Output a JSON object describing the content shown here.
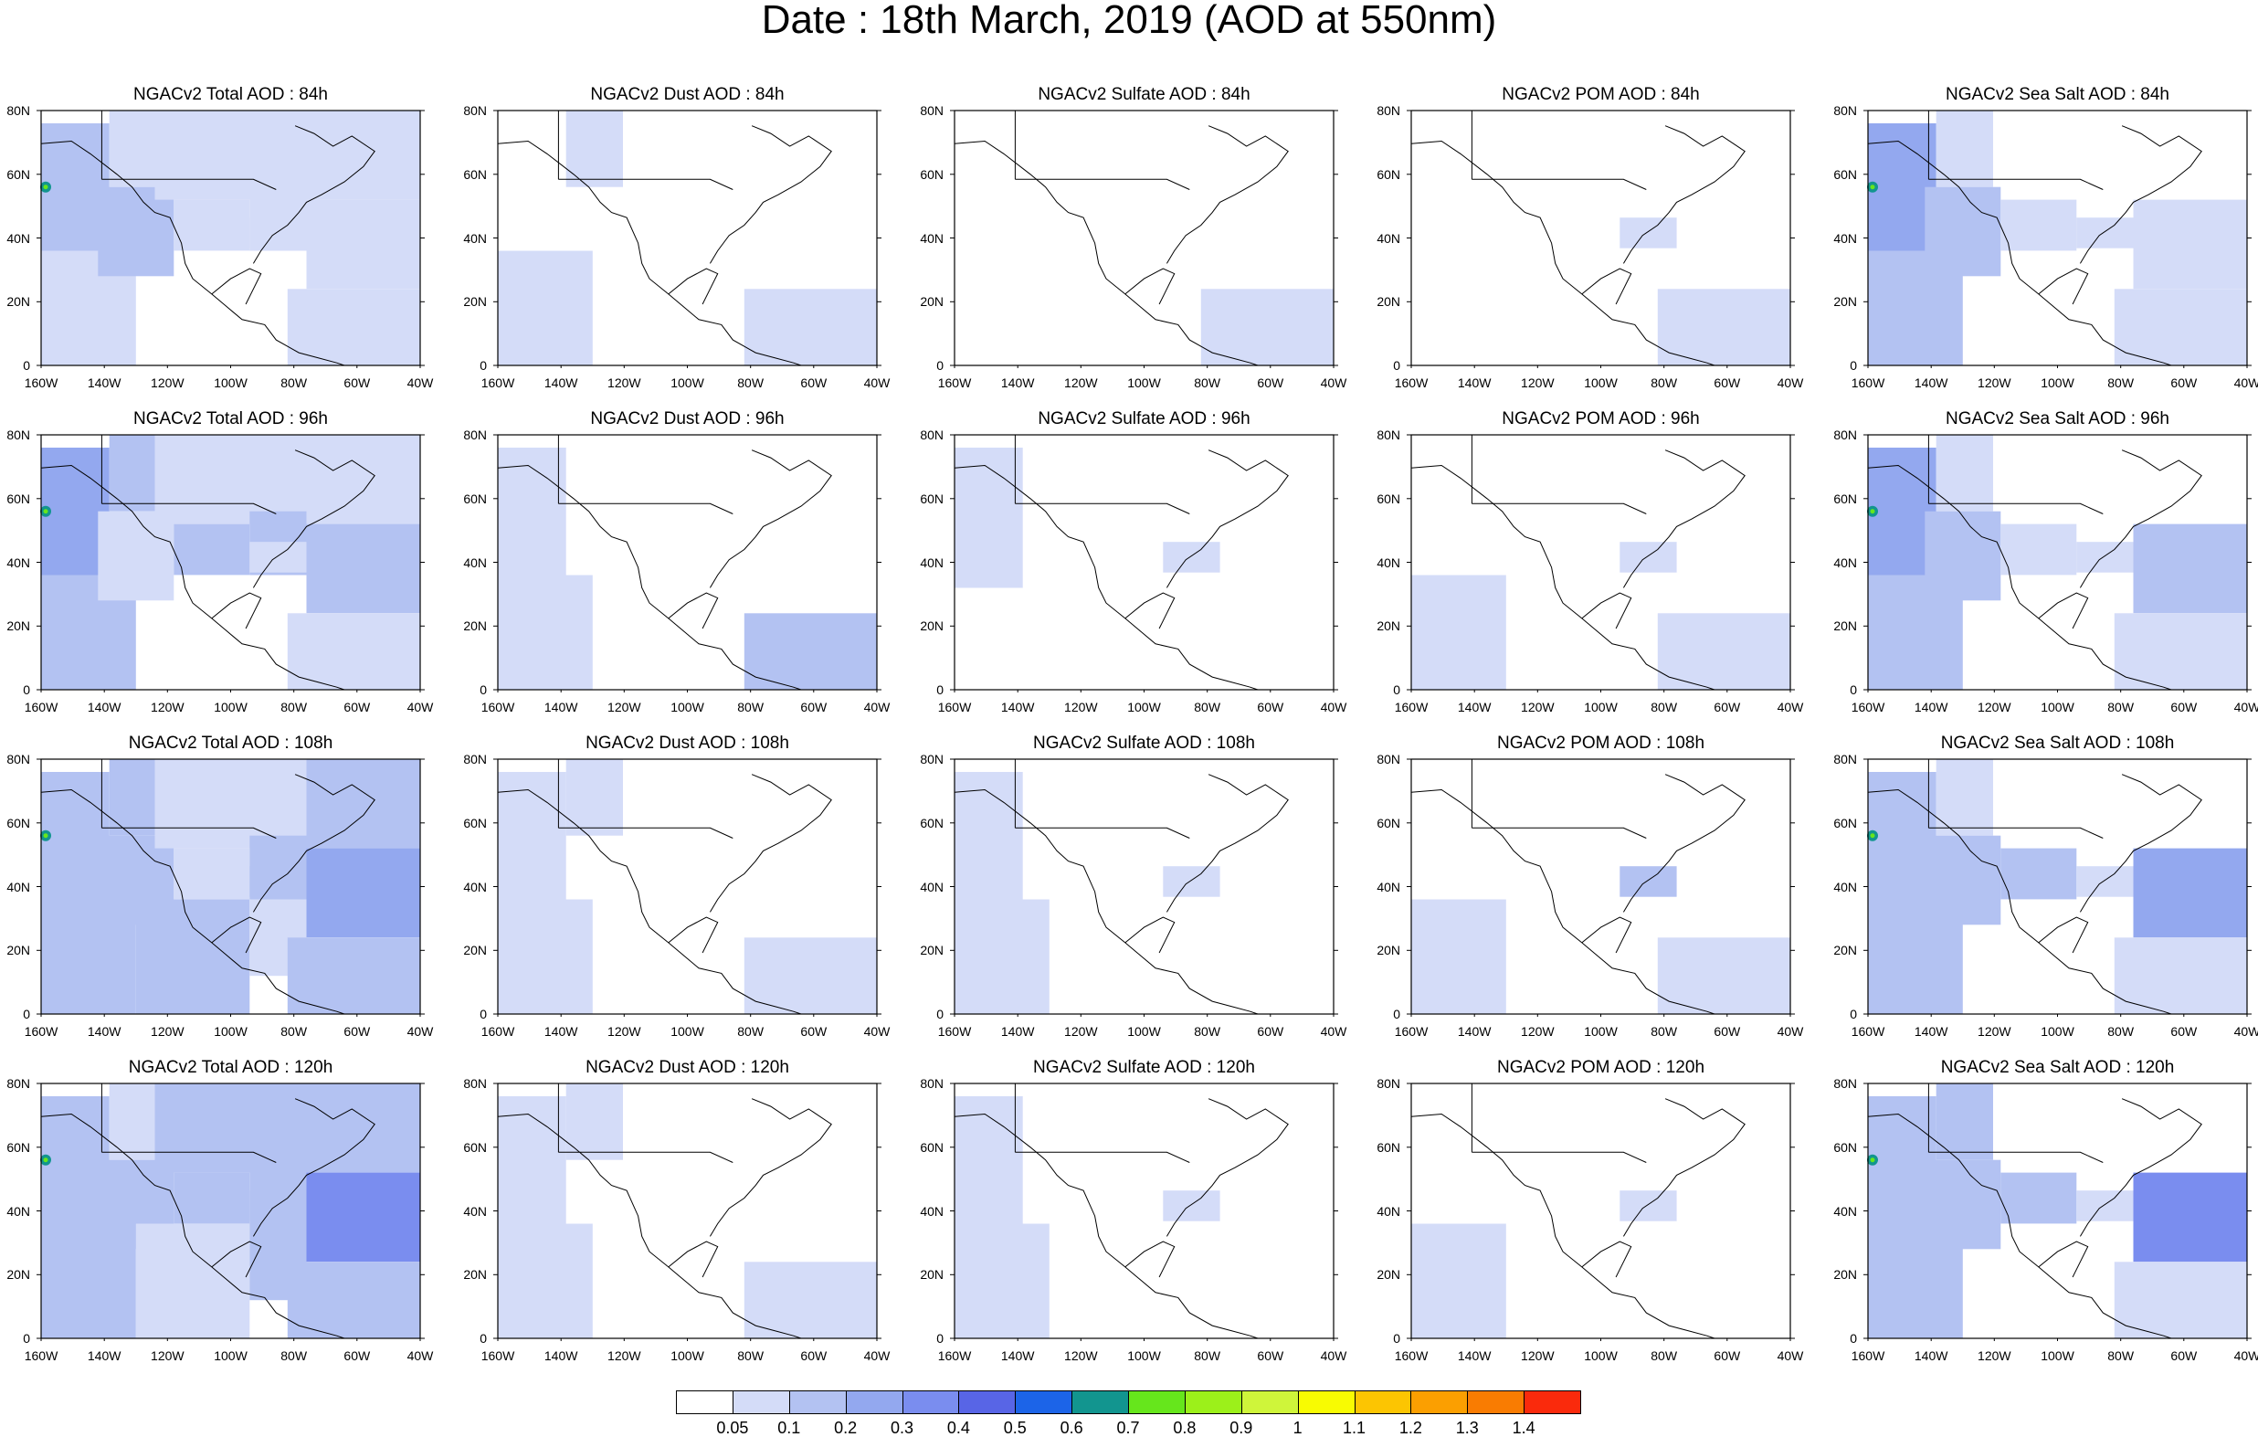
{
  "title": "Date : 18th March, 2019 (AOD at 550nm)",
  "panels": [
    [
      "NGACv2 Total AOD : 84h",
      "NGACv2 Dust AOD : 84h",
      "NGACv2 Sulfate AOD : 84h",
      "NGACv2 POM AOD : 84h",
      "NGACv2 Sea Salt AOD : 84h"
    ],
    [
      "NGACv2 Total AOD : 96h",
      "NGACv2 Dust AOD : 96h",
      "NGACv2 Sulfate AOD : 96h",
      "NGACv2 POM AOD : 96h",
      "NGACv2 Sea Salt AOD : 96h"
    ],
    [
      "NGACv2 Total AOD : 108h",
      "NGACv2 Dust AOD : 108h",
      "NGACv2 Sulfate AOD : 108h",
      "NGACv2 POM AOD : 108h",
      "NGACv2 Sea Salt AOD : 108h"
    ],
    [
      "NGACv2 Total AOD : 120h",
      "NGACv2 Dust AOD : 120h",
      "NGACv2 Sulfate AOD : 120h",
      "NGACv2 POM AOD : 120h",
      "NGACv2 Sea Salt  AOD : 120h"
    ]
  ],
  "lat_ticks": [
    "80N",
    "60N",
    "40N",
    "20N",
    "0"
  ],
  "lon_ticks": [
    "160W",
    "140W",
    "120W",
    "100W",
    "80W",
    "60W",
    "40W"
  ],
  "colorbar": {
    "labels": [
      "0.05",
      "0.1",
      "0.2",
      "0.3",
      "0.4",
      "0.5",
      "0.6",
      "0.7",
      "0.8",
      "0.9",
      "1",
      "1.1",
      "1.2",
      "1.3",
      "1.4"
    ],
    "colors": [
      "#ffffff",
      "#d4dcf8",
      "#b3c2f2",
      "#93a8ef",
      "#7a8def",
      "#5865e6",
      "#1c64e8",
      "#12958f",
      "#66e61c",
      "#9cf01a",
      "#cff53a",
      "#f8fb02",
      "#fcc502",
      "#fb9f01",
      "#f97c02",
      "#fa2a0c"
    ]
  },
  "aod_levels": {
    "Total": [
      [
        "#b3c2f2",
        "#d4dcf8",
        "#d4dcf8",
        "#b3c2f2",
        "#d4dcf8",
        "#d4dcf8",
        "#ffffff",
        "#ffffff",
        "#d4dcf8",
        "#d4dcf8",
        "#d4dcf8",
        "#d4dcf8",
        "#d4dcf8"
      ],
      [
        "#93a8ef",
        "#b3c2f2",
        "#b3c2f2",
        "#d4dcf8",
        "#b3c2f2",
        "#d4dcf8",
        "#ffffff",
        "#ffffff",
        "#b3c2f2",
        "#d4dcf8",
        "#d4dcf8",
        "#b3c2f2",
        "#d4dcf8"
      ],
      [
        "#b3c2f2",
        "#b3c2f2",
        "#b3c2f2",
        "#b3c2f2",
        "#d4dcf8",
        "#d4dcf8",
        "#b3c2f2",
        "#d4dcf8",
        "#b3c2f2",
        "#b3c2f2",
        "#b3c2f2",
        "#93a8ef",
        "#b3c2f2"
      ],
      [
        "#b3c2f2",
        "#b3c2f2",
        "#d4dcf8",
        "#b3c2f2",
        "#b3c2f2",
        "#b3c2f2",
        "#d4dcf8",
        "#b3c2f2",
        "#b3c2f2",
        "#b3c2f2",
        "#b3c2f2",
        "#7a8def",
        "#b3c2f2"
      ]
    ],
    "Dust": [
      [
        "#ffffff",
        "#d4dcf8",
        "#d4dcf8",
        "#ffffff",
        "#ffffff",
        "#ffffff",
        "#ffffff",
        "#ffffff",
        "#ffffff",
        "#ffffff",
        "#ffffff",
        "#ffffff",
        "#d4dcf8"
      ],
      [
        "#d4dcf8",
        "#d4dcf8",
        "#ffffff",
        "#ffffff",
        "#ffffff",
        "#ffffff",
        "#ffffff",
        "#ffffff",
        "#ffffff",
        "#ffffff",
        "#ffffff",
        "#ffffff",
        "#b3c2f2"
      ],
      [
        "#d4dcf8",
        "#d4dcf8",
        "#d4dcf8",
        "#ffffff",
        "#ffffff",
        "#ffffff",
        "#ffffff",
        "#ffffff",
        "#ffffff",
        "#ffffff",
        "#ffffff",
        "#ffffff",
        "#d4dcf8"
      ],
      [
        "#d4dcf8",
        "#d4dcf8",
        "#d4dcf8",
        "#ffffff",
        "#ffffff",
        "#ffffff",
        "#ffffff",
        "#ffffff",
        "#ffffff",
        "#ffffff",
        "#ffffff",
        "#ffffff",
        "#d4dcf8"
      ]
    ],
    "Sulfate": [
      [
        "#ffffff",
        "#ffffff",
        "#ffffff",
        "#ffffff",
        "#ffffff",
        "#ffffff",
        "#ffffff",
        "#ffffff",
        "#ffffff",
        "#ffffff",
        "#ffffff",
        "#ffffff",
        "#d4dcf8"
      ],
      [
        "#d4dcf8",
        "#ffffff",
        "#ffffff",
        "#ffffff",
        "#ffffff",
        "#ffffff",
        "#ffffff",
        "#ffffff",
        "#ffffff",
        "#ffffff",
        "#d4dcf8",
        "#ffffff",
        "#ffffff"
      ],
      [
        "#d4dcf8",
        "#d4dcf8",
        "#ffffff",
        "#ffffff",
        "#ffffff",
        "#ffffff",
        "#ffffff",
        "#ffffff",
        "#ffffff",
        "#ffffff",
        "#d4dcf8",
        "#ffffff",
        "#ffffff"
      ],
      [
        "#d4dcf8",
        "#d4dcf8",
        "#ffffff",
        "#ffffff",
        "#ffffff",
        "#ffffff",
        "#ffffff",
        "#ffffff",
        "#ffffff",
        "#ffffff",
        "#d4dcf8",
        "#ffffff",
        "#ffffff"
      ]
    ],
    "POM": [
      [
        "#ffffff",
        "#ffffff",
        "#ffffff",
        "#ffffff",
        "#ffffff",
        "#ffffff",
        "#ffffff",
        "#ffffff",
        "#ffffff",
        "#ffffff",
        "#d4dcf8",
        "#ffffff",
        "#d4dcf8"
      ],
      [
        "#ffffff",
        "#d4dcf8",
        "#ffffff",
        "#ffffff",
        "#ffffff",
        "#ffffff",
        "#ffffff",
        "#ffffff",
        "#ffffff",
        "#ffffff",
        "#d4dcf8",
        "#ffffff",
        "#d4dcf8"
      ],
      [
        "#ffffff",
        "#d4dcf8",
        "#ffffff",
        "#ffffff",
        "#ffffff",
        "#ffffff",
        "#ffffff",
        "#ffffff",
        "#ffffff",
        "#ffffff",
        "#b3c2f2",
        "#ffffff",
        "#d4dcf8"
      ],
      [
        "#ffffff",
        "#d4dcf8",
        "#ffffff",
        "#ffffff",
        "#ffffff",
        "#ffffff",
        "#ffffff",
        "#ffffff",
        "#ffffff",
        "#ffffff",
        "#d4dcf8",
        "#ffffff",
        "#ffffff"
      ]
    ],
    "SeaSalt": [
      [
        "#93a8ef",
        "#b3c2f2",
        "#d4dcf8",
        "#b3c2f2",
        "#d4dcf8",
        "#ffffff",
        "#ffffff",
        "#ffffff",
        "#ffffff",
        "#ffffff",
        "#d4dcf8",
        "#d4dcf8",
        "#d4dcf8"
      ],
      [
        "#93a8ef",
        "#b3c2f2",
        "#d4dcf8",
        "#b3c2f2",
        "#d4dcf8",
        "#ffffff",
        "#ffffff",
        "#ffffff",
        "#ffffff",
        "#ffffff",
        "#d4dcf8",
        "#b3c2f2",
        "#d4dcf8"
      ],
      [
        "#b3c2f2",
        "#b3c2f2",
        "#d4dcf8",
        "#b3c2f2",
        "#b3c2f2",
        "#ffffff",
        "#ffffff",
        "#ffffff",
        "#ffffff",
        "#ffffff",
        "#d4dcf8",
        "#93a8ef",
        "#d4dcf8"
      ],
      [
        "#b3c2f2",
        "#b3c2f2",
        "#b3c2f2",
        "#b3c2f2",
        "#b3c2f2",
        "#ffffff",
        "#ffffff",
        "#ffffff",
        "#ffffff",
        "#ffffff",
        "#d4dcf8",
        "#7a8def",
        "#d4dcf8"
      ]
    ]
  },
  "map_colors": {
    "coastline": "#000000",
    "hotspot_green": "#12958f",
    "hotspot_bright": "#66e61c"
  }
}
